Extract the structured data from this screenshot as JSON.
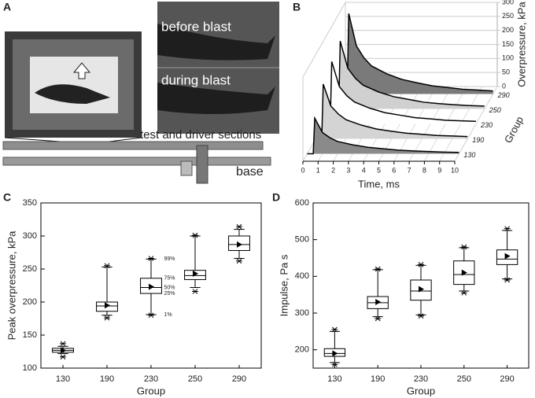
{
  "figure": {
    "panel_labels": [
      "A",
      "B",
      "C",
      "D"
    ]
  },
  "photo": {
    "labels": [
      "before blast",
      "during blast",
      "test and driver sections",
      "base"
    ]
  },
  "chart_data": [
    {
      "type": "waterfall",
      "x_label": "Time, ms",
      "y_label": "Overpressure, kPa",
      "z_label": "Group",
      "x": [
        0,
        0.4,
        0.5,
        1,
        1.5,
        2,
        3,
        4,
        5,
        6,
        7,
        8,
        9,
        10
      ],
      "xlim": [
        0,
        10
      ],
      "xticks": [
        0,
        1,
        2,
        3,
        4,
        5,
        6,
        7,
        8,
        9,
        10
      ],
      "ylim": [
        0,
        300
      ],
      "yticks": [
        0,
        50,
        100,
        150,
        200,
        250,
        300
      ],
      "series": [
        {
          "name": "130",
          "color": "#8a8a8a",
          "values": [
            0,
            0,
            127,
            76,
            57,
            44,
            32,
            23,
            18,
            13,
            10,
            8,
            6,
            5
          ]
        },
        {
          "name": "190",
          "color": "#d4d4d4",
          "values": [
            0,
            0,
            195,
            117,
            88,
            68,
            49,
            35,
            27,
            20,
            16,
            12,
            10,
            8
          ]
        },
        {
          "name": "230",
          "color": "#ffffff",
          "values": [
            0,
            0,
            222,
            133,
            100,
            78,
            56,
            40,
            31,
            22,
            18,
            13,
            11,
            9
          ]
        },
        {
          "name": "250",
          "color": "#d0d0d0",
          "values": [
            0,
            0,
            242,
            145,
            109,
            85,
            61,
            44,
            34,
            24,
            19,
            15,
            12,
            10
          ]
        },
        {
          "name": "290",
          "color": "#7a7a7a",
          "values": [
            0,
            0,
            287,
            172,
            129,
            100,
            72,
            52,
            40,
            29,
            23,
            17,
            14,
            11
          ]
        }
      ]
    },
    {
      "type": "box",
      "x_label": "Group",
      "y_label": "Peak overpressure, kPa",
      "categories": [
        "130",
        "190",
        "230",
        "250",
        "290"
      ],
      "min": [
        117,
        176,
        180,
        216,
        262
      ],
      "p1": [
        122,
        180,
        181,
        222,
        266
      ],
      "q1": [
        124,
        186,
        213,
        234,
        278
      ],
      "median": [
        127,
        194,
        222,
        240,
        287
      ],
      "q3": [
        130,
        200,
        236,
        248,
        300
      ],
      "p99": [
        133,
        253,
        265,
        300,
        310
      ],
      "max": [
        137,
        255,
        266,
        301,
        314
      ],
      "mean": [
        127,
        195,
        223,
        243,
        287
      ],
      "box_labels": [
        "99%",
        "75%",
        "50%",
        "25%",
        "1%"
      ],
      "ylim": [
        100,
        350
      ],
      "yticks": [
        100,
        150,
        200,
        250,
        300,
        350
      ]
    },
    {
      "type": "box",
      "x_label": "Group",
      "y_label": "Impulse, Pa s",
      "categories": [
        "130",
        "190",
        "230",
        "250",
        "290"
      ],
      "min": [
        160,
        285,
        292,
        355,
        390
      ],
      "p1": [
        165,
        290,
        295,
        360,
        393
      ],
      "q1": [
        182,
        312,
        335,
        378,
        432
      ],
      "median": [
        190,
        328,
        360,
        405,
        447
      ],
      "q3": [
        203,
        345,
        390,
        442,
        472
      ],
      "p99": [
        250,
        418,
        430,
        478,
        525
      ],
      "max": [
        255,
        420,
        432,
        480,
        530
      ],
      "mean": [
        190,
        330,
        365,
        410,
        455
      ],
      "ylim": [
        150,
        600
      ],
      "yticks": [
        200,
        300,
        400,
        500,
        600
      ]
    }
  ]
}
